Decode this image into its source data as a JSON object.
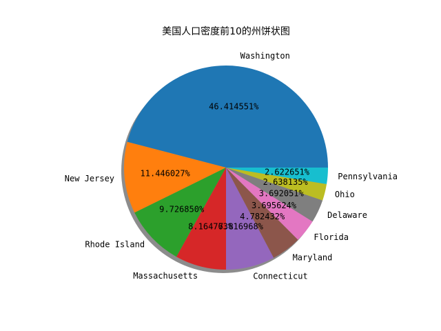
{
  "chart_data": {
    "type": "pie",
    "title": "美国人口密度前10的州饼状图",
    "categories": [
      "Washington",
      "New Jersey",
      "Rhode Island",
      "Massachusetts",
      "Connecticut",
      "Maryland",
      "Florida",
      "Delaware",
      "Ohio",
      "Pennsylvania"
    ],
    "values": [
      46.414551,
      11.446027,
      9.72685,
      8.164763,
      7.816968,
      4.782432,
      3.695624,
      3.692051,
      2.638135,
      2.622651
    ],
    "value_labels": [
      "46.414551%",
      "11.446027%",
      "9.726850%",
      "8.164763%",
      "7.816968%",
      "4.782432%",
      "3.695624%",
      "3.692051%",
      "2.638135%",
      "2.622651%"
    ],
    "colors": [
      "#1f77b4",
      "#ff7f0e",
      "#2ca02c",
      "#d62728",
      "#9467bd",
      "#8c564b",
      "#e377c2",
      "#7f7f7f",
      "#bcbd22",
      "#17becf"
    ],
    "start_angle_deg": 0,
    "direction": "counterclockwise",
    "shadow": true,
    "legend": "none"
  }
}
